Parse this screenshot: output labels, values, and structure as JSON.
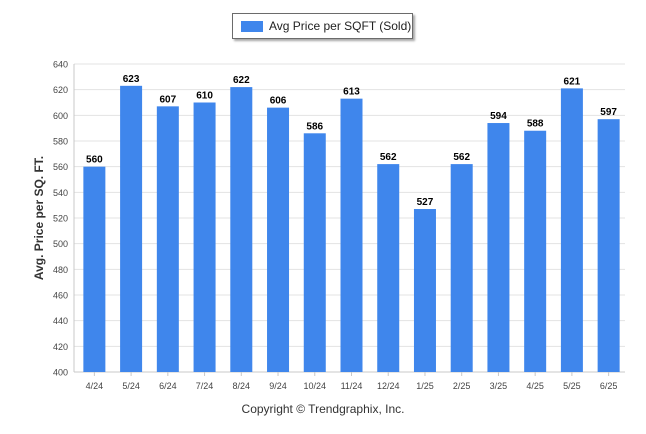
{
  "legend": {
    "label": "Avg Price per SQFT (Sold)"
  },
  "copyright": "Copyright © Trendgraphix, Inc.",
  "colors": {
    "bar": "#3f86ec",
    "grid": "#e3e3e3",
    "axis_text": "#444444",
    "value_text": "#000000"
  },
  "chart_data": {
    "type": "bar",
    "title": "",
    "xlabel": "",
    "ylabel": "Avg. Price per SQ. FT.",
    "ylim": [
      400,
      640
    ],
    "yticks": [
      400,
      420,
      440,
      460,
      480,
      500,
      520,
      540,
      560,
      580,
      600,
      620,
      640
    ],
    "grid": true,
    "legend_position": "top-center",
    "categories": [
      "4/24",
      "5/24",
      "6/24",
      "7/24",
      "8/24",
      "9/24",
      "10/24",
      "11/24",
      "12/24",
      "1/25",
      "2/25",
      "3/25",
      "4/25",
      "5/25",
      "6/25"
    ],
    "series": [
      {
        "name": "Avg Price per SQFT (Sold)",
        "values": [
          560,
          623,
          607,
          610,
          622,
          606,
          586,
          613,
          562,
          527,
          562,
          594,
          588,
          621,
          597
        ]
      }
    ]
  }
}
